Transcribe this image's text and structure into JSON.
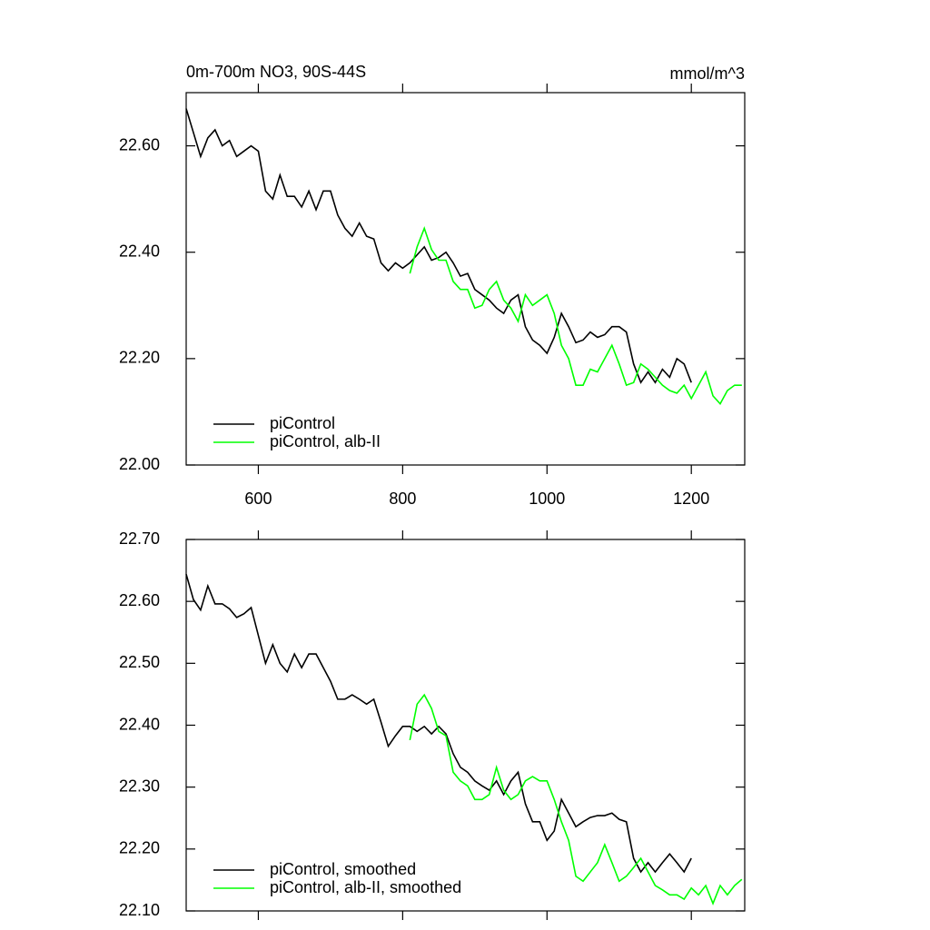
{
  "chart_data": [
    {
      "type": "line",
      "title": "0m-700m NO3, 90S-44S",
      "units": "mmol/m^3",
      "xlim": [
        500,
        1274
      ],
      "ylim": [
        22.0,
        22.7
      ],
      "xticks": [
        600,
        800,
        1000,
        1200
      ],
      "xtick_labels": true,
      "yticks": [
        {
          "value": 22.0,
          "label": "22.00"
        },
        {
          "value": 22.2,
          "label": "22.20"
        },
        {
          "value": 22.4,
          "label": "22.40"
        },
        {
          "value": 22.6,
          "label": "22.60"
        }
      ],
      "legend": "lower left",
      "series": [
        {
          "name": "piControl",
          "color": "#000000",
          "x": [
            500,
            510,
            520,
            530,
            540,
            550,
            560,
            570,
            580,
            590,
            600,
            610,
            620,
            630,
            640,
            650,
            660,
            670,
            680,
            690,
            700,
            710,
            720,
            730,
            740,
            750,
            760,
            770,
            780,
            790,
            800,
            810,
            820,
            830,
            840,
            850,
            860,
            870,
            880,
            890,
            900,
            910,
            920,
            930,
            940,
            950,
            960,
            970,
            980,
            990,
            1000,
            1010,
            1020,
            1030,
            1040,
            1050,
            1060,
            1070,
            1080,
            1090,
            1100,
            1110,
            1120,
            1130,
            1140,
            1150,
            1160,
            1170,
            1180,
            1190,
            1200
          ],
          "values": [
            22.67,
            22.625,
            22.58,
            22.615,
            22.63,
            22.6,
            22.61,
            22.58,
            22.59,
            22.6,
            22.59,
            22.515,
            22.5,
            22.545,
            22.505,
            22.505,
            22.485,
            22.515,
            22.48,
            22.515,
            22.515,
            22.47,
            22.445,
            22.43,
            22.455,
            22.43,
            22.425,
            22.38,
            22.365,
            22.38,
            22.37,
            22.38,
            22.395,
            22.41,
            22.385,
            22.39,
            22.4,
            22.38,
            22.355,
            22.36,
            22.33,
            22.32,
            22.31,
            22.295,
            22.285,
            22.31,
            22.32,
            22.26,
            22.235,
            22.225,
            22.21,
            22.24,
            22.285,
            22.26,
            22.23,
            22.235,
            22.25,
            22.24,
            22.245,
            22.26,
            22.26,
            22.25,
            22.19,
            22.155,
            22.175,
            22.155,
            22.18,
            22.165,
            22.2,
            22.19,
            22.155
          ]
        },
        {
          "name": "piControl, alb-II",
          "color": "#00ff00",
          "x": [
            810,
            820,
            830,
            840,
            850,
            860,
            870,
            880,
            890,
            900,
            910,
            920,
            930,
            940,
            950,
            960,
            970,
            980,
            990,
            1000,
            1010,
            1020,
            1030,
            1040,
            1050,
            1060,
            1070,
            1080,
            1090,
            1100,
            1110,
            1120,
            1130,
            1140,
            1150,
            1160,
            1170,
            1180,
            1190,
            1200,
            1210,
            1220,
            1230,
            1240,
            1250,
            1260,
            1270
          ],
          "values": [
            22.36,
            22.41,
            22.445,
            22.405,
            22.385,
            22.385,
            22.345,
            22.33,
            22.33,
            22.295,
            22.3,
            22.33,
            22.345,
            22.31,
            22.295,
            22.27,
            22.32,
            22.3,
            22.31,
            22.32,
            22.285,
            22.225,
            22.2,
            22.15,
            22.15,
            22.18,
            22.175,
            22.2,
            22.225,
            22.19,
            22.15,
            22.155,
            22.19,
            22.18,
            22.165,
            22.15,
            22.14,
            22.135,
            22.15,
            22.125,
            22.15,
            22.175,
            22.13,
            22.115,
            22.14,
            22.15,
            22.15
          ]
        }
      ]
    },
    {
      "type": "line",
      "xlim": [
        500,
        1274
      ],
      "ylim": [
        22.1,
        22.7
      ],
      "xticks": [
        600,
        800,
        1000,
        1200
      ],
      "xtick_labels": false,
      "yticks": [
        {
          "value": 22.1,
          "label": "22.10"
        },
        {
          "value": 22.2,
          "label": "22.20"
        },
        {
          "value": 22.3,
          "label": "22.30"
        },
        {
          "value": 22.4,
          "label": "22.40"
        },
        {
          "value": 22.5,
          "label": "22.50"
        },
        {
          "value": 22.6,
          "label": "22.60"
        },
        {
          "value": 22.7,
          "label": "22.70"
        }
      ],
      "legend": "lower left",
      "series": [
        {
          "name": "piControl, smoothed",
          "color": "#000000",
          "x": [
            500,
            510,
            520,
            530,
            540,
            550,
            560,
            570,
            580,
            590,
            600,
            610,
            620,
            630,
            640,
            650,
            660,
            670,
            680,
            690,
            700,
            710,
            720,
            730,
            740,
            750,
            760,
            770,
            780,
            790,
            800,
            810,
            820,
            830,
            840,
            850,
            860,
            870,
            880,
            890,
            900,
            910,
            920,
            930,
            940,
            950,
            960,
            970,
            980,
            990,
            1000,
            1010,
            1020,
            1030,
            1040,
            1050,
            1060,
            1070,
            1080,
            1090,
            1100,
            1110,
            1120,
            1130,
            1140,
            1150,
            1160,
            1170,
            1180,
            1190,
            1200
          ],
          "values": [
            22.644,
            22.603,
            22.586,
            22.625,
            22.596,
            22.596,
            22.588,
            22.574,
            22.58,
            22.59,
            22.545,
            22.5,
            22.53,
            22.5,
            22.486,
            22.515,
            22.493,
            22.515,
            22.515,
            22.493,
            22.471,
            22.442,
            22.442,
            22.449,
            22.442,
            22.434,
            22.442,
            22.405,
            22.366,
            22.383,
            22.398,
            22.398,
            22.39,
            22.398,
            22.386,
            22.398,
            22.386,
            22.354,
            22.332,
            22.324,
            22.31,
            22.302,
            22.295,
            22.31,
            22.288,
            22.31,
            22.324,
            22.273,
            22.244,
            22.244,
            22.214,
            22.229,
            22.28,
            22.258,
            22.236,
            22.244,
            22.251,
            22.254,
            22.254,
            22.258,
            22.248,
            22.244,
            22.185,
            22.163,
            22.178,
            22.163,
            22.178,
            22.192,
            22.178,
            22.163,
            22.185
          ]
        },
        {
          "name": "piControl, alb-II, smoothed",
          "color": "#00ff00",
          "x": [
            810,
            820,
            830,
            840,
            850,
            860,
            870,
            880,
            890,
            900,
            910,
            920,
            930,
            940,
            950,
            960,
            970,
            980,
            990,
            1000,
            1010,
            1020,
            1030,
            1040,
            1050,
            1060,
            1070,
            1080,
            1090,
            1100,
            1110,
            1120,
            1130,
            1140,
            1150,
            1160,
            1170,
            1180,
            1190,
            1200,
            1210,
            1220,
            1230,
            1240,
            1250,
            1260,
            1270
          ],
          "values": [
            22.376,
            22.434,
            22.449,
            22.427,
            22.39,
            22.383,
            22.324,
            22.31,
            22.302,
            22.28,
            22.28,
            22.288,
            22.332,
            22.295,
            22.28,
            22.288,
            22.31,
            22.317,
            22.31,
            22.31,
            22.28,
            22.244,
            22.214,
            22.156,
            22.148,
            22.163,
            22.178,
            22.207,
            22.178,
            22.148,
            22.156,
            22.17,
            22.185,
            22.163,
            22.141,
            22.134,
            22.126,
            22.126,
            22.119,
            22.137,
            22.126,
            22.141,
            22.112,
            22.141,
            22.126,
            22.141,
            22.151
          ]
        }
      ]
    }
  ]
}
